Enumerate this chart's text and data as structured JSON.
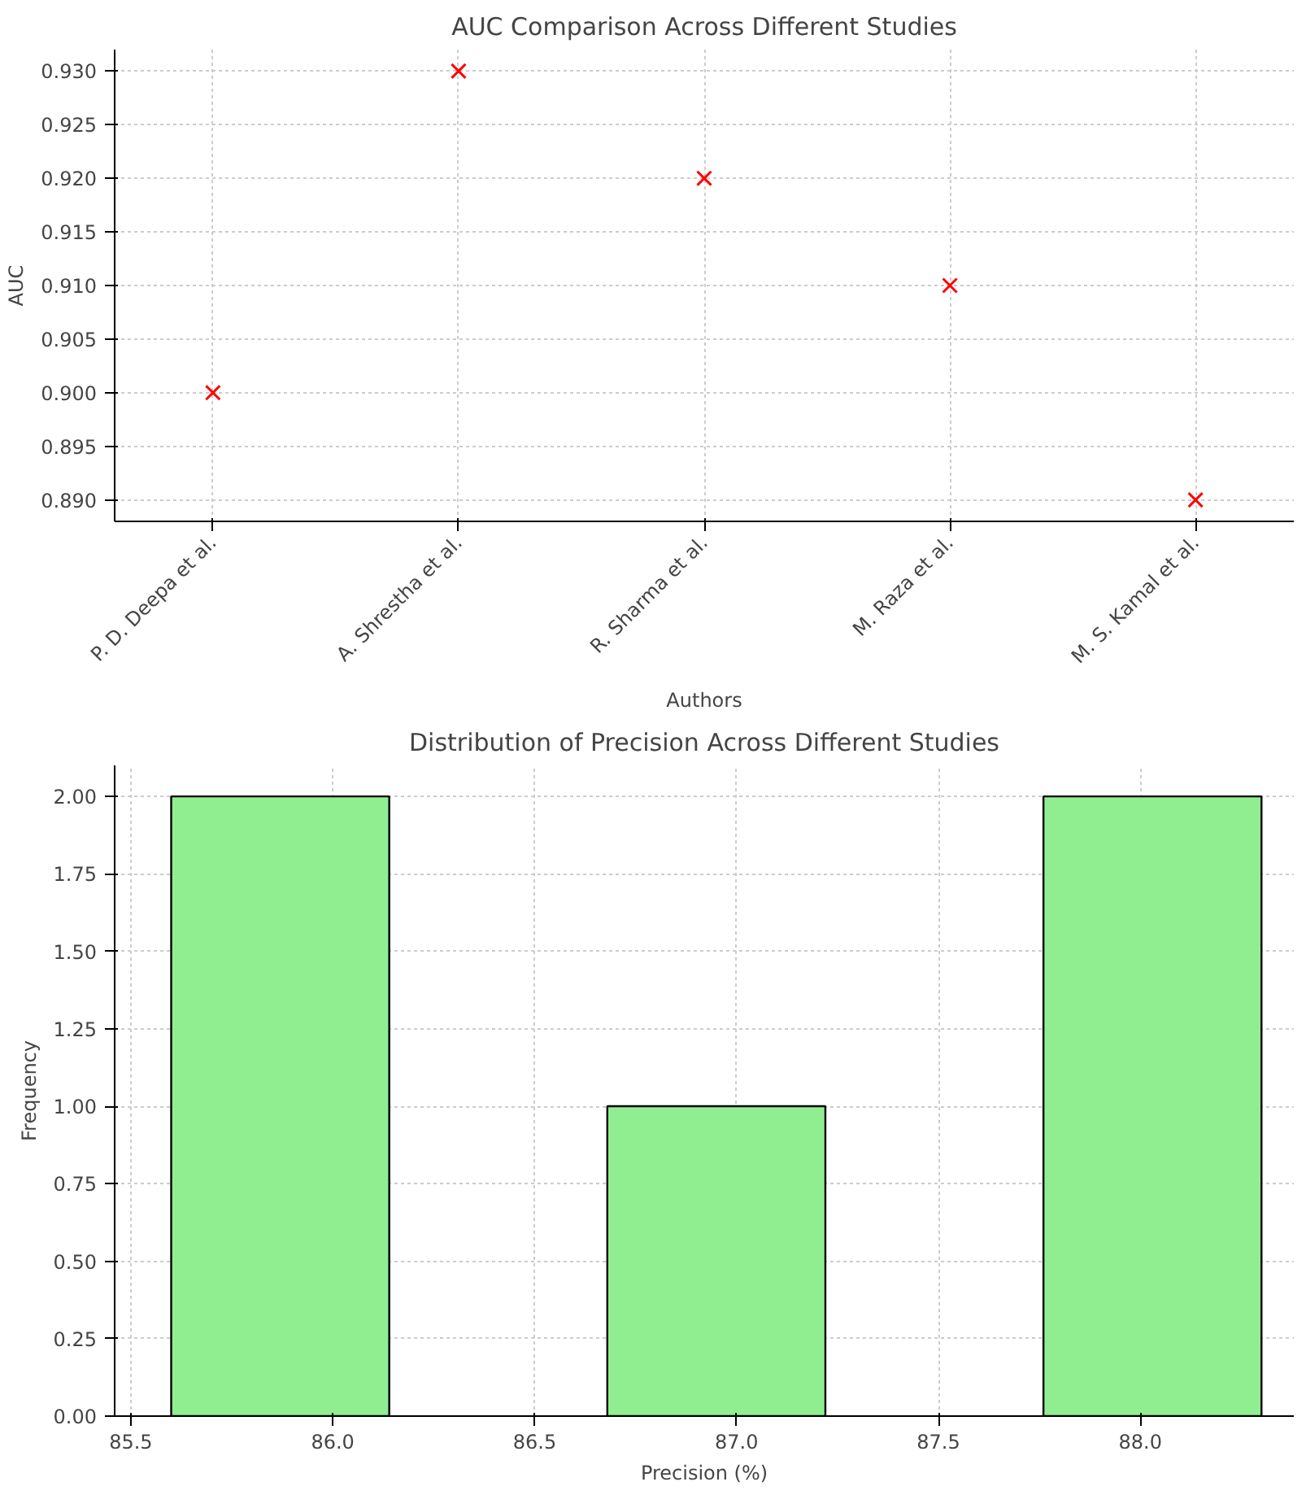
{
  "chart_data": [
    {
      "type": "scatter",
      "title": "AUC Comparison Across Different Studies",
      "xlabel": "Authors",
      "ylabel": "AUC",
      "categories": [
        "P. D. Deepa et al.",
        "A. Shrestha et al.",
        "R. Sharma et al.",
        "M. Raza et al.",
        "M. S. Kamal et al."
      ],
      "series": [
        {
          "color": "#ff0000",
          "values": [
            0.9,
            0.93,
            0.92,
            0.91,
            0.89
          ]
        }
      ],
      "marker": "cross",
      "grid": true,
      "ylim": [
        0.888,
        0.932
      ],
      "yticks": [
        {
          "value": 0.89,
          "label": "0.890"
        },
        {
          "value": 0.895,
          "label": "0.895"
        },
        {
          "value": 0.9,
          "label": "0.900"
        },
        {
          "value": 0.905,
          "label": "0.905"
        },
        {
          "value": 0.91,
          "label": "0.910"
        },
        {
          "value": 0.915,
          "label": "0.915"
        },
        {
          "value": 0.92,
          "label": "0.920"
        },
        {
          "value": 0.925,
          "label": "0.925"
        },
        {
          "value": 0.93,
          "label": "0.930"
        }
      ]
    },
    {
      "type": "histogram",
      "title": "Distribution of Precision Across Different Studies",
      "xlabel": "Precision (%)",
      "ylabel": "Frequency",
      "bins": [
        85.6,
        86.14,
        86.68,
        87.22,
        87.76,
        88.3
      ],
      "values": [
        2,
        0,
        1,
        0,
        2
      ],
      "color": "#90ee90",
      "grid": true,
      "xlim": [
        85.46,
        88.38
      ],
      "ylim": [
        0,
        2.1
      ],
      "xticks": [
        {
          "value": 85.5,
          "label": "85.5"
        },
        {
          "value": 86.0,
          "label": "86.0"
        },
        {
          "value": 86.5,
          "label": "86.5"
        },
        {
          "value": 87.0,
          "label": "87.0"
        },
        {
          "value": 87.5,
          "label": "87.5"
        },
        {
          "value": 88.0,
          "label": "88.0"
        }
      ],
      "yticks": [
        {
          "value": 0,
          "label": "0.00"
        },
        {
          "value": 0.25,
          "label": "0.25"
        },
        {
          "value": 0.5,
          "label": "0.50"
        },
        {
          "value": 0.75,
          "label": "0.75"
        },
        {
          "value": 1.0,
          "label": "1.00"
        },
        {
          "value": 1.25,
          "label": "1.25"
        },
        {
          "value": 1.5,
          "label": "1.50"
        },
        {
          "value": 1.75,
          "label": "1.75"
        },
        {
          "value": 2.0,
          "label": "2.00"
        }
      ]
    }
  ]
}
